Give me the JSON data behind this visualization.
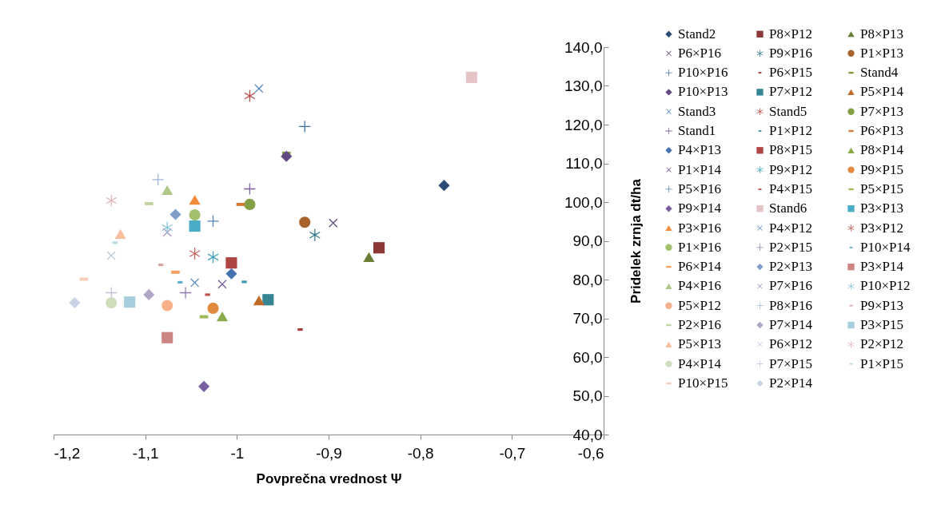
{
  "chart_data": {
    "type": "scatter",
    "xlabel": "Povprečna vrednost Ψ",
    "ylabel": "Pridelek zrnja dt/ha",
    "legend": "right",
    "xlim": [
      -1.2,
      -0.6
    ],
    "ylim": [
      40,
      140
    ],
    "xticks": [
      {
        "value": -1.2,
        "label": "-1,2"
      },
      {
        "value": -1.1,
        "label": "-1,1"
      },
      {
        "value": -1,
        "label": "-1"
      },
      {
        "value": -0.9,
        "label": "-0,9"
      },
      {
        "value": -0.8,
        "label": "-0,8"
      },
      {
        "value": -0.7,
        "label": "-0,7"
      },
      {
        "value": -0.6,
        "label": "-0,6"
      }
    ],
    "yticks": [
      {
        "value": 40,
        "label": "40,0"
      },
      {
        "value": 50,
        "label": "50,0"
      },
      {
        "value": 60,
        "label": "60,0"
      },
      {
        "value": 70,
        "label": "70,0"
      },
      {
        "value": 80,
        "label": "80,0"
      },
      {
        "value": 90,
        "label": "90,0"
      },
      {
        "value": 100,
        "label": "100,0"
      },
      {
        "value": 110,
        "label": "110,0"
      },
      {
        "value": 120,
        "label": "120,0"
      },
      {
        "value": 130,
        "label": "130,0"
      },
      {
        "value": 140,
        "label": "140,0"
      }
    ],
    "series": [
      {
        "name": "Stand2",
        "color": "#2c4d75",
        "marker": "diamond",
        "x": [
          -0.774
        ],
        "values": [
          104.3
        ]
      },
      {
        "name": "P8×P12",
        "color": "#8c3836",
        "marker": "square",
        "x": [
          -0.845
        ],
        "values": [
          88.2
        ]
      },
      {
        "name": "P8×P13",
        "color": "#677e35",
        "marker": "triangle",
        "x": [
          -0.856
        ],
        "values": [
          85.8
        ]
      },
      {
        "name": "P6×P16",
        "color": "#5c4776",
        "x": [
          -0.895
        ],
        "values": [
          94.6
        ]
      },
      {
        "name": "P9×P16",
        "color": "#2e7a8e",
        "x": [
          -0.915
        ],
        "values": [
          91.5
        ]
      },
      {
        "name": "P1×P13",
        "color": "#a8622b",
        "marker": "circle",
        "x": [
          -0.926
        ],
        "values": [
          94.8
        ]
      },
      {
        "name": "P10×P16",
        "color": "#3e6eaa",
        "marker": "cross",
        "x": [
          -0.926
        ],
        "values": [
          119.5
        ]
      },
      {
        "name": "P6×P15",
        "color": "#a63b38",
        "x": [
          -0.931
        ],
        "values": [
          67.1
        ]
      },
      {
        "name": "Stand4",
        "color": "#7b9a40",
        "x": [
          -0.946
        ],
        "values": [
          112.6
        ]
      },
      {
        "name": "P10×P13",
        "color": "#634a85",
        "marker": "diamond",
        "x": [
          -0.946
        ],
        "values": [
          111.8
        ]
      },
      {
        "name": "P7×P12",
        "color": "#378594",
        "marker": "square",
        "x": [
          -0.966
        ],
        "values": [
          74.8
        ]
      },
      {
        "name": "P5×P14",
        "color": "#bf6b2a",
        "marker": "triangle",
        "x": [
          -0.976
        ],
        "values": [
          74.6
        ]
      },
      {
        "name": "Stand3",
        "color": "#4a7ebb",
        "x": [
          -0.976
        ],
        "values": [
          129.3
        ]
      },
      {
        "name": "Stand5",
        "color": "#be4b48",
        "x": [
          -0.986
        ],
        "values": [
          127.4
        ]
      },
      {
        "name": "P7×P13",
        "color": "#84a045",
        "marker": "circle",
        "x": [
          -0.986
        ],
        "values": [
          99.4
        ]
      },
      {
        "name": "Stand1",
        "color": "#7d60a0",
        "marker": "cross",
        "x": [
          -0.986
        ],
        "values": [
          103.4
        ]
      },
      {
        "name": "P1×P12",
        "color": "#3b98b0",
        "x": [
          -0.992
        ],
        "values": [
          79.4
        ]
      },
      {
        "name": "P6×P13",
        "color": "#d77a36",
        "x": [
          -0.996
        ],
        "values": [
          99.4
        ]
      },
      {
        "name": "P4×P13",
        "color": "#4774b0",
        "marker": "diamond",
        "x": [
          -1.006
        ],
        "values": [
          81.5
        ]
      },
      {
        "name": "P8×P15",
        "color": "#b04644",
        "marker": "square",
        "x": [
          -1.006
        ],
        "values": [
          84.3
        ]
      },
      {
        "name": "P8×P14",
        "color": "#8aaa4b",
        "marker": "triangle",
        "x": [
          -1.016
        ],
        "values": [
          70.5
        ]
      },
      {
        "name": "P1×P14",
        "color": "#6f5591",
        "x": [
          -1.016
        ],
        "values": [
          78.8
        ]
      },
      {
        "name": "P9×P12",
        "color": "#3da1bb",
        "x": [
          -1.026
        ],
        "values": [
          85.8
        ]
      },
      {
        "name": "P9×P15",
        "color": "#e08a3e",
        "marker": "circle",
        "x": [
          -1.026
        ],
        "values": [
          72.6
        ]
      },
      {
        "name": "P5×P16",
        "color": "#4f81bd",
        "marker": "cross",
        "x": [
          -1.026
        ],
        "values": [
          95.1
        ]
      },
      {
        "name": "P4×P15",
        "color": "#c0504d",
        "x": [
          -1.032
        ],
        "values": [
          76.1
        ]
      },
      {
        "name": "P5×P15",
        "color": "#9bbb59",
        "x": [
          -1.036
        ],
        "values": [
          70.4
        ]
      },
      {
        "name": "P9×P14",
        "color": "#7a5fa0",
        "marker": "diamond",
        "x": [
          -1.036
        ],
        "values": [
          52.4
        ]
      },
      {
        "name": "Stand6",
        "color": "#e6c4c6",
        "marker": "square",
        "x": [
          -0.744
        ],
        "values": [
          132.2
        ]
      },
      {
        "name": "P3×P13",
        "color": "#4bacc6",
        "marker": "square",
        "x": [
          -1.046
        ],
        "values": [
          93.8
        ]
      },
      {
        "name": "P3×P16",
        "color": "#f08c3c",
        "marker": "triangle",
        "x": [
          -1.046
        ],
        "values": [
          100.6
        ]
      },
      {
        "name": "P4×P12",
        "color": "#5a87c6",
        "x": [
          -1.046
        ],
        "values": [
          79.2
        ]
      },
      {
        "name": "P3×P12",
        "color": "#c86462",
        "x": [
          -1.046
        ],
        "values": [
          86.7
        ]
      },
      {
        "name": "P1×P16",
        "color": "#a3c06c",
        "marker": "circle",
        "x": [
          -1.046
        ],
        "values": [
          96.7
        ]
      },
      {
        "name": "P2×P15",
        "color": "#8e7aae",
        "marker": "cross",
        "x": [
          -1.056
        ],
        "values": [
          76.6
        ]
      },
      {
        "name": "P10×P14",
        "color": "#5db4cc",
        "x": [
          -1.062
        ],
        "values": [
          79.3
        ]
      },
      {
        "name": "P6×P14",
        "color": "#f5a060",
        "x": [
          -1.067
        ],
        "values": [
          81.9
        ]
      },
      {
        "name": "P2×P13",
        "color": "#839dcb",
        "marker": "diamond",
        "x": [
          -1.067
        ],
        "values": [
          96.8
        ]
      },
      {
        "name": "P3×P14",
        "color": "#cd8584",
        "marker": "square",
        "x": [
          -1.076
        ],
        "values": [
          65.0
        ]
      },
      {
        "name": "P4×P16",
        "color": "#b0c98a",
        "marker": "triangle",
        "x": [
          -1.076
        ],
        "values": [
          103.1
        ]
      },
      {
        "name": "P7×P16",
        "color": "#a493be",
        "x": [
          -1.076
        ],
        "values": [
          92.2
        ]
      },
      {
        "name": "P10×P12",
        "color": "#84c6d8",
        "x": [
          -1.076
        ],
        "values": [
          93.4
        ]
      },
      {
        "name": "P5×P12",
        "color": "#f8b08a",
        "marker": "circle",
        "x": [
          -1.076
        ],
        "values": [
          73.3
        ]
      },
      {
        "name": "P8×P16",
        "color": "#a2b4d8",
        "marker": "cross",
        "x": [
          -1.086
        ],
        "values": [
          105.8
        ]
      },
      {
        "name": "P9×P13",
        "color": "#d9a3a3",
        "x": [
          -1.083
        ],
        "values": [
          83.8
        ]
      },
      {
        "name": "P2×P16",
        "color": "#c0d4a0",
        "x": [
          -1.096
        ],
        "values": [
          99.6
        ]
      },
      {
        "name": "P7×P14",
        "color": "#b2a6c6",
        "marker": "diamond",
        "x": [
          -1.096
        ],
        "values": [
          76.1
        ]
      },
      {
        "name": "P3×P15",
        "color": "#a6cedc",
        "marker": "square",
        "x": [
          -1.117
        ],
        "values": [
          74.2
        ]
      },
      {
        "name": "P5×P13",
        "color": "#f9bfa0",
        "marker": "triangle",
        "x": [
          -1.127
        ],
        "values": [
          91.8
        ]
      },
      {
        "name": "P6×P12",
        "color": "#bcc8e0",
        "x": [
          -1.137
        ],
        "values": [
          86.2
        ]
      },
      {
        "name": "P2×P12",
        "color": "#e2b7b6",
        "x": [
          -1.137
        ],
        "values": [
          100.4
        ]
      },
      {
        "name": "P4×P14",
        "color": "#cfddbd",
        "marker": "circle",
        "x": [
          -1.137
        ],
        "values": [
          74.0
        ]
      },
      {
        "name": "P7×P15",
        "color": "#c8c0d8",
        "marker": "cross",
        "x": [
          -1.137
        ],
        "values": [
          76.6
        ]
      },
      {
        "name": "P1×P15",
        "color": "#b6d8e4",
        "x": [
          -1.133
        ],
        "values": [
          89.5
        ]
      },
      {
        "name": "P10×P15",
        "color": "#fbcdb6",
        "x": [
          -1.167
        ],
        "values": [
          80.1
        ]
      },
      {
        "name": "P2×P14",
        "color": "#cad3e6",
        "marker": "diamond",
        "x": [
          -1.177
        ],
        "values": [
          74.0
        ]
      }
    ]
  }
}
